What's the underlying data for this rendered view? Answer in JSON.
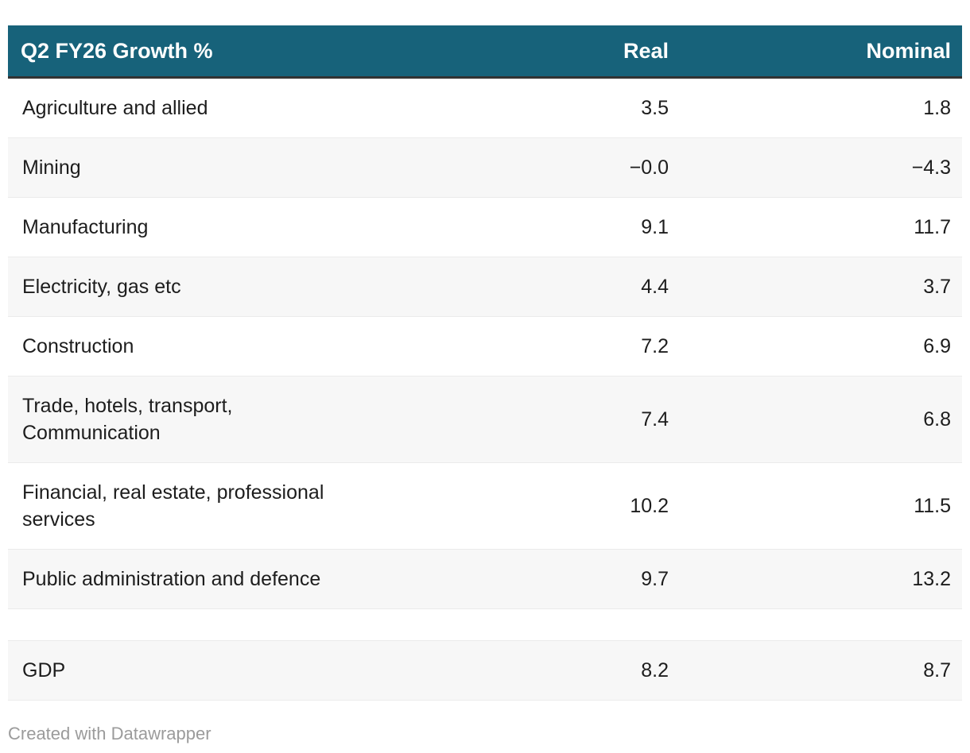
{
  "table": {
    "header": {
      "title": "Q2 FY26 Growth %",
      "col_real": "Real",
      "col_nominal": "Nominal"
    },
    "rows": [
      {
        "label": "Agriculture and allied",
        "real": "3.5",
        "nominal": "1.8"
      },
      {
        "label": "Mining",
        "real": "−0.0",
        "nominal": "−4.3"
      },
      {
        "label": "Manufacturing",
        "real": "9.1",
        "nominal": "11.7"
      },
      {
        "label": "Electricity, gas etc",
        "real": "4.4",
        "nominal": "3.7"
      },
      {
        "label": "Construction",
        "real": "7.2",
        "nominal": "6.9"
      },
      {
        "label": "Trade, hotels, transport,\nCommunication",
        "real": "7.4",
        "nominal": "6.8"
      },
      {
        "label": "Financial, real estate, professional\nservices",
        "real": "10.2",
        "nominal": "11.5"
      },
      {
        "label": "Public administration and defence",
        "real": "9.7",
        "nominal": "13.2"
      },
      {
        "label": "",
        "real": "",
        "nominal": ""
      },
      {
        "label": "GDP",
        "real": "8.2",
        "nominal": "8.7"
      }
    ],
    "footer": "Created with Datawrapper"
  },
  "colors": {
    "header_bg": "#17627A",
    "header_text": "#FFFFFF",
    "header_border": "#333333",
    "row_stripe": "#F7F7F7",
    "row_border": "#EBEBEB",
    "body_text": "#1D1D1D",
    "footer_text": "#9B9B9B"
  },
  "chart_data": {
    "type": "table",
    "title": "Q2 FY26 Growth %",
    "columns": [
      "Q2 FY26 Growth %",
      "Real",
      "Nominal"
    ],
    "rows": [
      [
        "Agriculture and allied",
        3.5,
        1.8
      ],
      [
        "Mining",
        -0.0,
        -4.3
      ],
      [
        "Manufacturing",
        9.1,
        11.7
      ],
      [
        "Electricity, gas etc",
        4.4,
        3.7
      ],
      [
        "Construction",
        7.2,
        6.9
      ],
      [
        "Trade, hotels, transport, Communication",
        7.4,
        6.8
      ],
      [
        "Financial, real estate, professional services",
        10.2,
        11.5
      ],
      [
        "Public administration and defence",
        9.7,
        13.2
      ],
      [
        "",
        null,
        null
      ],
      [
        "GDP",
        8.2,
        8.7
      ]
    ],
    "attribution": "Created with Datawrapper"
  }
}
